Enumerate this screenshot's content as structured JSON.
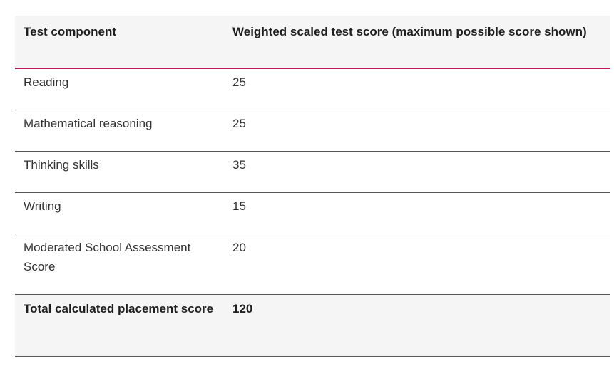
{
  "table": {
    "headers": [
      "Test component",
      "Weighted scaled test score (maximum possible score shown)"
    ],
    "rows": [
      [
        "Reading",
        "25"
      ],
      [
        "Mathematical reasoning",
        "25"
      ],
      [
        "Thinking skills",
        "35"
      ],
      [
        "Writing",
        "15"
      ],
      [
        "Moderated School Assessment Score",
        "20"
      ]
    ],
    "total": [
      "Total calculated placement score",
      "120"
    ]
  },
  "colors": {
    "header_rule": "#c0185b",
    "row_rule": "#555555",
    "header_bg": "#f5f5f5",
    "text": "#333333"
  }
}
